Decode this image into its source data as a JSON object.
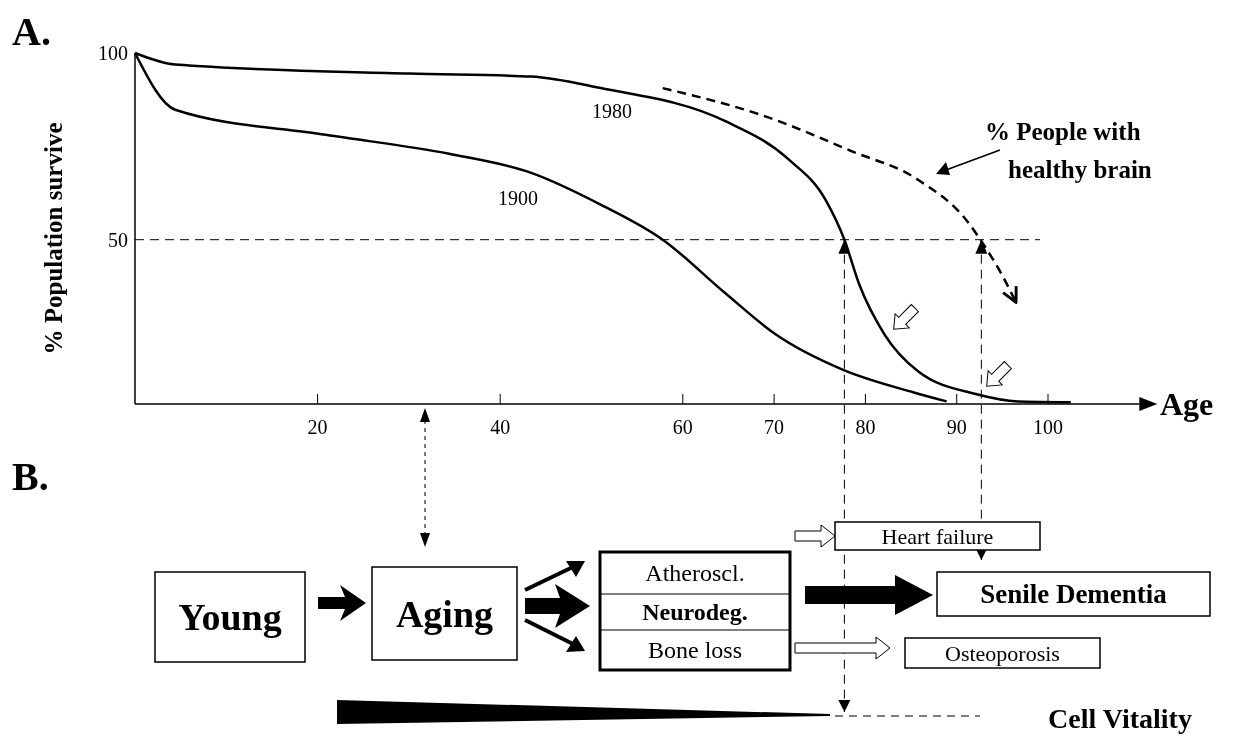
{
  "chart_data": [
    {
      "type": "line",
      "title": "A.",
      "xlabel": "Age",
      "ylabel": "% Population survive",
      "xlim": [
        0,
        110
      ],
      "xticks": [
        20,
        40,
        60,
        70,
        80,
        90,
        100
      ],
      "ylim": [
        6,
        100
      ],
      "yticks": [
        50,
        100
      ],
      "line_style": "solid",
      "marker": "none",
      "grid": false,
      "series": [
        {
          "name": "1980",
          "color": "#000000",
          "x": [
            0,
            4.4,
            30,
            43.4,
            51,
            64.6,
            71.5,
            75.7,
            77.7,
            79.3,
            82.1,
            85.8,
            92.2,
            96.7,
            102.5
          ],
          "values": [
            100,
            96.9,
            94.5,
            93.7,
            90.6,
            81.8,
            71.7,
            60.4,
            50,
            38.2,
            24.6,
            14.7,
            8.6,
            6.7,
            6.5
          ]
        },
        {
          "name": "1900",
          "color": "#000000",
          "x": [
            0,
            4.4,
            20.9,
            34.4,
            43.4,
            51,
            57.8,
            64.6,
            70.2,
            77.5,
            85.3,
            88.9
          ],
          "values": [
            100,
            84.8,
            78.1,
            73,
            67.9,
            59.4,
            50,
            35.8,
            24.6,
            15.2,
            9.1,
            6.7
          ]
        },
        {
          "name": "% People with healthy brain",
          "color": "#000000",
          "line_style": "dashed",
          "x": [
            57.8,
            69.2,
            78.4,
            85.8,
            91.2,
            93.1,
            95,
            96.5
          ],
          "values": [
            90.6,
            82.9,
            73.8,
            66,
            54.8,
            48.1,
            40.4,
            33.2
          ]
        }
      ],
      "ref_lines": [
        {
          "axis": "y",
          "value": 50,
          "line_style": "dashed"
        },
        {
          "axis": "x",
          "value": 77.7,
          "line_style": "dashed"
        },
        {
          "axis": "x",
          "value": 92.7,
          "line_style": "dashed"
        }
      ]
    },
    {
      "type": "other",
      "title": "B.",
      "annotations": [
        "Young",
        "Aging",
        "Atheroscl.",
        "Neurodeg.",
        "Bone loss",
        "Heart failure",
        "Senile Dementia",
        "Osteoporosis",
        "Cell Vitality"
      ]
    }
  ]
}
